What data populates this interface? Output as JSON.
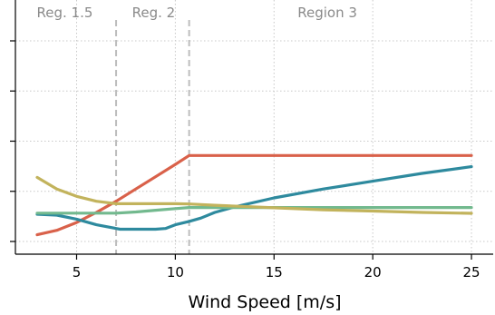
{
  "chart_data": {
    "type": "line",
    "title": "",
    "xlabel": "Wind Speed [m/s]",
    "ylabel": "",
    "xlim": [
      1.9,
      26.1
    ],
    "ylim": [
      0,
      1
    ],
    "x_ticks": [
      5,
      10,
      15,
      20,
      25
    ],
    "y_tick_count": 5,
    "y_tick_labels_shown": false,
    "grid": true,
    "grid_style": "dotted",
    "legend": "none",
    "region_boundaries": [
      7.0,
      10.7
    ],
    "region_labels": [
      {
        "text": "Reg. 1.5",
        "x": 4.4
      },
      {
        "text": "Reg. 2",
        "x": 8.9
      },
      {
        "text": "Region 3",
        "x": 17.7
      }
    ],
    "series": [
      {
        "color": "#d9614a",
        "points": [
          [
            3,
            0.03
          ],
          [
            4,
            0.05
          ],
          [
            5,
            0.085
          ],
          [
            6,
            0.13
          ],
          [
            7,
            0.18
          ],
          [
            8,
            0.235
          ],
          [
            9,
            0.29
          ],
          [
            10,
            0.345
          ],
          [
            10.7,
            0.385
          ],
          [
            12,
            0.385
          ],
          [
            15,
            0.385
          ],
          [
            20,
            0.385
          ],
          [
            25,
            0.385
          ]
        ]
      },
      {
        "color": "#2e8a9e",
        "points": [
          [
            3,
            0.122
          ],
          [
            4,
            0.118
          ],
          [
            5,
            0.1
          ],
          [
            6,
            0.075
          ],
          [
            7,
            0.058
          ],
          [
            7.2,
            0.055
          ],
          [
            9,
            0.055
          ],
          [
            9.5,
            0.058
          ],
          [
            10,
            0.075
          ],
          [
            10.7,
            0.09
          ],
          [
            11.3,
            0.105
          ],
          [
            12,
            0.13
          ],
          [
            13,
            0.155
          ],
          [
            15,
            0.195
          ],
          [
            17.5,
            0.235
          ],
          [
            20,
            0.27
          ],
          [
            22.5,
            0.305
          ],
          [
            25,
            0.335
          ]
        ]
      },
      {
        "color": "#72b98e",
        "points": [
          [
            3,
            0.127
          ],
          [
            5,
            0.127
          ],
          [
            6,
            0.127
          ],
          [
            7,
            0.127
          ],
          [
            8,
            0.132
          ],
          [
            9,
            0.14
          ],
          [
            10,
            0.147
          ],
          [
            10.7,
            0.152
          ],
          [
            12,
            0.152
          ],
          [
            15,
            0.152
          ],
          [
            20,
            0.152
          ],
          [
            25,
            0.152
          ]
        ]
      },
      {
        "color": "#c2b35c",
        "points": [
          [
            3,
            0.287
          ],
          [
            4,
            0.235
          ],
          [
            5,
            0.202
          ],
          [
            6,
            0.18
          ],
          [
            7,
            0.169
          ],
          [
            8,
            0.169
          ],
          [
            9,
            0.169
          ],
          [
            10,
            0.169
          ],
          [
            10.7,
            0.168
          ],
          [
            12,
            0.162
          ],
          [
            15,
            0.151
          ],
          [
            17.5,
            0.142
          ],
          [
            20,
            0.136
          ],
          [
            22.5,
            0.13
          ],
          [
            25,
            0.126
          ]
        ]
      }
    ]
  }
}
